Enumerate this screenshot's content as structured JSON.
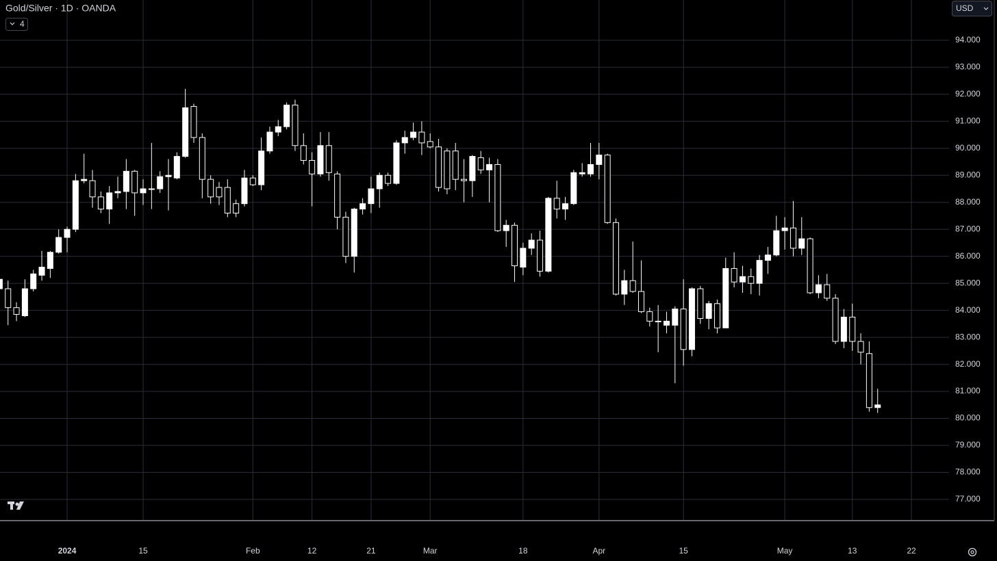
{
  "chart_data": {
    "type": "candlestick",
    "title": "Gold/Silver · 1D · OANDA",
    "indicator_count": 4,
    "currency": "USD",
    "up_color": "#ffffff",
    "down_color": "#000000",
    "grid": true,
    "ylim": [
      76.24,
      95.49
    ],
    "yticks": [
      {
        "value": 77,
        "label": "77.000"
      },
      {
        "value": 78,
        "label": "78.000"
      },
      {
        "value": 79,
        "label": "79.000"
      },
      {
        "value": 80,
        "label": "80.000"
      },
      {
        "value": 81,
        "label": "81.000"
      },
      {
        "value": 82,
        "label": "82.000"
      },
      {
        "value": 83,
        "label": "83.000"
      },
      {
        "value": 84,
        "label": "84.000"
      },
      {
        "value": 85,
        "label": "85.000"
      },
      {
        "value": 86,
        "label": "86.000"
      },
      {
        "value": 87,
        "label": "87.000"
      },
      {
        "value": 88,
        "label": "88.000"
      },
      {
        "value": 89,
        "label": "89.000"
      },
      {
        "value": 90,
        "label": "90.000"
      },
      {
        "value": 91,
        "label": "91.000"
      },
      {
        "value": 92,
        "label": "92.000"
      },
      {
        "value": 93,
        "label": "93.000"
      },
      {
        "value": 94,
        "label": "94.000"
      }
    ],
    "categories": [
      null,
      null,
      null,
      null,
      null,
      null,
      null,
      null,
      "2024",
      null,
      null,
      null,
      null,
      null,
      null,
      null,
      null,
      "15",
      null,
      null,
      null,
      null,
      null,
      null,
      null,
      null,
      null,
      null,
      null,
      null,
      "Feb",
      null,
      null,
      null,
      null,
      null,
      null,
      "12",
      null,
      null,
      null,
      null,
      null,
      null,
      "21",
      null,
      null,
      null,
      null,
      null,
      null,
      "Mar",
      null,
      null,
      null,
      null,
      null,
      null,
      null,
      null,
      null,
      null,
      "18",
      null,
      null,
      null,
      null,
      null,
      null,
      null,
      null,
      "Apr",
      null,
      null,
      null,
      null,
      null,
      null,
      null,
      null,
      null,
      "15",
      null,
      null,
      null,
      null,
      null,
      null,
      null,
      null,
      null,
      null,
      null,
      "May",
      null,
      null,
      null,
      null,
      null,
      null,
      null,
      "13",
      null,
      null,
      null,
      null,
      null,
      null,
      "22"
    ],
    "open": [
      84.8,
      84.8,
      84.1,
      83.8,
      84.8,
      85.3,
      85.55,
      86.15,
      86.7,
      87.0,
      88.8,
      88.8,
      88.2,
      87.75,
      88.35,
      88.4,
      89.15,
      88.35,
      88.5,
      88.5,
      88.95,
      88.9,
      89.7,
      91.55,
      90.4,
      88.85,
      88.55,
      88.55,
      87.95,
      87.95,
      88.9,
      88.65,
      89.9,
      90.6,
      90.8,
      91.6,
      90.1,
      89.55,
      89.05,
      90.1,
      89.05,
      87.45,
      86.0,
      87.75,
      87.95,
      88.5,
      89.0,
      88.7,
      90.2,
      90.4,
      90.6,
      90.25,
      90.05,
      89.9,
      89.9,
      88.85,
      88.8,
      89.65,
      89.2,
      89.4,
      86.95,
      87.15,
      85.6,
      86.3,
      86.6,
      85.45,
      88.15,
      87.75,
      87.95,
      89.05,
      89.05,
      89.4,
      89.75,
      87.25,
      84.6,
      85.1,
      84.7,
      83.95,
      83.6,
      83.45,
      83.45,
      84.05,
      82.55,
      84.8,
      83.7,
      84.25,
      83.35,
      85.55,
      85.05,
      85.25,
      85.0,
      85.85,
      86.05,
      86.95,
      87.05,
      86.3,
      86.65,
      84.65,
      84.95,
      84.45,
      82.85,
      83.75,
      82.85,
      82.4,
      80.4,
      null,
      null,
      null,
      null
    ],
    "high": [
      85.3,
      85.1,
      84.3,
      85.15,
      85.5,
      86.2,
      86.2,
      87.0,
      87.1,
      89.05,
      89.8,
      89.2,
      88.4,
      88.6,
      88.95,
      89.6,
      89.2,
      88.85,
      90.2,
      89.15,
      89.6,
      89.85,
      92.2,
      91.65,
      90.55,
      89.0,
      88.75,
      88.85,
      88.1,
      89.2,
      89.0,
      90.4,
      90.8,
      91.05,
      91.7,
      91.8,
      90.55,
      89.85,
      90.6,
      90.6,
      89.15,
      87.65,
      87.8,
      88.15,
      88.95,
      89.1,
      89.1,
      90.3,
      90.65,
      90.95,
      91.0,
      90.55,
      90.35,
      90.0,
      90.2,
      89.6,
      89.75,
      89.9,
      89.65,
      89.6,
      87.35,
      87.25,
      86.5,
      86.85,
      86.95,
      88.2,
      88.8,
      88.2,
      89.2,
      89.45,
      90.2,
      90.2,
      89.8,
      87.4,
      85.5,
      86.55,
      85.85,
      84.1,
      84.2,
      83.95,
      84.15,
      85.15,
      84.85,
      84.9,
      84.35,
      84.4,
      85.95,
      86.15,
      85.65,
      85.55,
      86.05,
      86.35,
      87.5,
      87.45,
      88.05,
      87.45,
      86.7,
      85.3,
      85.35,
      84.6,
      84.05,
      84.25,
      83.15,
      82.85,
      81.1,
      null,
      null,
      null,
      null
    ],
    "low": [
      84.6,
      83.45,
      83.6,
      83.75,
      84.7,
      85.1,
      85.2,
      86.1,
      86.15,
      86.9,
      88.7,
      87.8,
      87.6,
      87.2,
      88.15,
      87.75,
      87.5,
      87.9,
      87.75,
      88.35,
      87.7,
      88.85,
      89.65,
      90.2,
      88.15,
      87.95,
      87.9,
      87.45,
      87.45,
      87.85,
      88.6,
      88.45,
      89.8,
      90.45,
      90.7,
      89.9,
      89.4,
      87.85,
      88.95,
      88.8,
      87.0,
      85.75,
      85.4,
      87.55,
      87.6,
      87.8,
      88.6,
      88.65,
      89.8,
      90.3,
      89.75,
      90.0,
      88.4,
      88.3,
      88.45,
      88.0,
      88.2,
      89.05,
      88.0,
      86.9,
      86.35,
      85.05,
      85.3,
      86.05,
      85.25,
      85.4,
      87.4,
      87.35,
      87.9,
      88.95,
      88.95,
      88.85,
      87.2,
      84.55,
      84.2,
      84.65,
      83.9,
      83.4,
      82.45,
      83.15,
      81.3,
      81.95,
      82.3,
      83.5,
      83.3,
      83.15,
      83.35,
      84.85,
      84.65,
      84.6,
      84.55,
      85.35,
      86.0,
      86.25,
      86.0,
      86.05,
      84.6,
      84.45,
      84.35,
      82.75,
      82.6,
      82.5,
      82.0,
      80.25,
      80.2,
      null,
      null,
      null,
      null
    ],
    "close": [
      85.15,
      84.1,
      83.85,
      84.8,
      85.35,
      85.6,
      86.15,
      86.7,
      87.0,
      88.8,
      88.85,
      88.2,
      87.75,
      88.35,
      88.4,
      89.15,
      88.35,
      88.5,
      88.5,
      88.95,
      89.0,
      89.7,
      91.5,
      90.4,
      88.85,
      88.2,
      88.2,
      87.6,
      87.6,
      88.9,
      88.65,
      89.9,
      90.6,
      90.8,
      91.6,
      90.1,
      89.55,
      89.05,
      90.1,
      89.1,
      87.45,
      86.0,
      87.75,
      87.95,
      88.5,
      89.0,
      88.7,
      90.2,
      90.4,
      90.6,
      90.2,
      90.05,
      88.55,
      88.5,
      88.85,
      88.8,
      89.7,
      89.2,
      89.4,
      86.95,
      87.15,
      85.65,
      86.3,
      86.6,
      85.45,
      88.15,
      87.75,
      87.95,
      89.1,
      89.1,
      89.4,
      89.75,
      87.25,
      84.6,
      85.1,
      84.7,
      83.95,
      83.6,
      83.6,
      83.6,
      84.05,
      82.55,
      84.8,
      83.7,
      84.25,
      83.35,
      85.55,
      85.05,
      85.25,
      85.0,
      85.85,
      86.05,
      86.95,
      87.05,
      86.3,
      86.65,
      84.65,
      84.95,
      84.45,
      82.85,
      83.75,
      82.85,
      82.45,
      80.4,
      80.5,
      null,
      null,
      null,
      null
    ]
  }
}
